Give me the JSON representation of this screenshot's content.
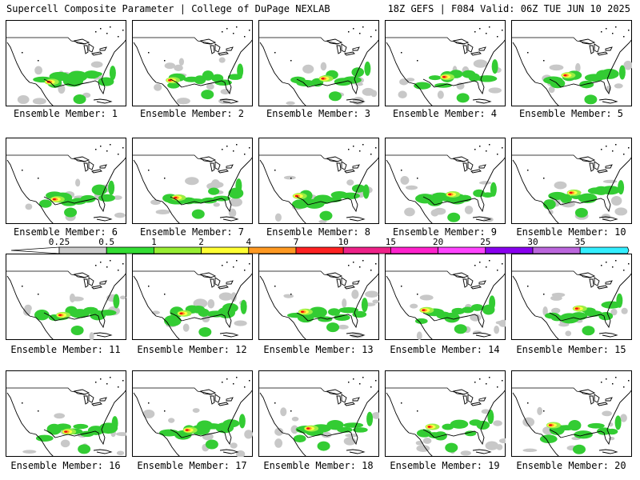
{
  "header": {
    "left_title": "Supercell Composite Parameter | College of DuPage NEXLAB",
    "right_title": "18Z GEFS | F084 Valid: 06Z TUE JUN 10 2025"
  },
  "members": [
    {
      "label": "Ensemble Member: 1"
    },
    {
      "label": "Ensemble Member: 2"
    },
    {
      "label": "Ensemble Member: 3"
    },
    {
      "label": "Ensemble Member: 4"
    },
    {
      "label": "Ensemble Member: 5"
    },
    {
      "label": "Ensemble Member: 6"
    },
    {
      "label": "Ensemble Member: 7"
    },
    {
      "label": "Ensemble Member: 8"
    },
    {
      "label": "Ensemble Member: 9"
    },
    {
      "label": "Ensemble Member: 10"
    },
    {
      "label": "Ensemble Member: 11"
    },
    {
      "label": "Ensemble Member: 12"
    },
    {
      "label": "Ensemble Member: 13"
    },
    {
      "label": "Ensemble Member: 14"
    },
    {
      "label": "Ensemble Member: 15"
    },
    {
      "label": "Ensemble Member: 16"
    },
    {
      "label": "Ensemble Member: 17"
    },
    {
      "label": "Ensemble Member: 18"
    },
    {
      "label": "Ensemble Member: 19"
    },
    {
      "label": "Ensemble Member: 20"
    }
  ],
  "colorbar": {
    "levels": [
      "0.25",
      "0.5",
      "1",
      "2",
      "4",
      "7",
      "10",
      "15",
      "20",
      "25",
      "30",
      "35"
    ],
    "colors": [
      "#cccccc",
      "#33dd33",
      "#99ee33",
      "#ffff33",
      "#ff9922",
      "#ff2222",
      "#ee2288",
      "#ff22cc",
      "#ff44ff",
      "#8800ee",
      "#bb66dd",
      "#33eeff"
    ]
  },
  "field_colors": {
    "gray": "#c8c8c8",
    "green": "#33cc33",
    "lightgreen": "#99ee44",
    "yellow": "#ffff44",
    "orange": "#ff9922",
    "red": "#ee1111"
  }
}
